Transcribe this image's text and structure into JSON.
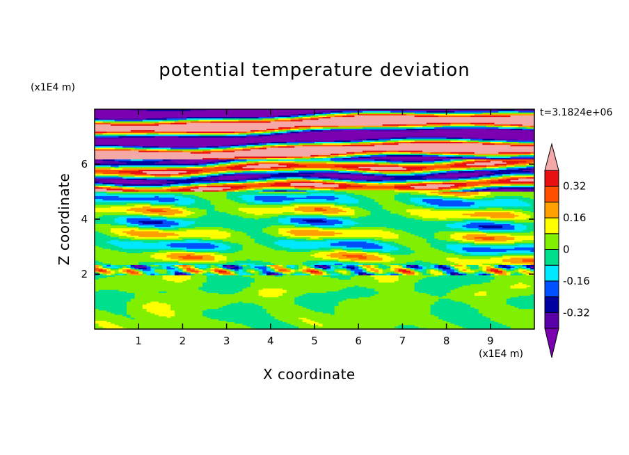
{
  "chart_data": {
    "type": "heatmap",
    "title": "potential temperature deviation",
    "xlabel": "X coordinate",
    "ylabel": "Z coordinate",
    "x_unit_label": "(x1E4 m)",
    "y_unit_label": "(x1E4 m)",
    "annotation": "t=3.1824e+06",
    "xlim": [
      0,
      10
    ],
    "ylim": [
      0,
      8
    ],
    "x_ticks": [
      1,
      2,
      3,
      4,
      5,
      6,
      7,
      8,
      9
    ],
    "y_ticks": [
      2,
      4,
      6
    ],
    "colorbar": {
      "levels": [
        -0.4,
        -0.32,
        -0.24,
        -0.16,
        -0.08,
        0,
        0.08,
        0.16,
        0.24,
        0.32,
        0.4
      ],
      "labels": [
        "0.32",
        "0.16",
        "0",
        "-0.16",
        "-0.32"
      ],
      "label_values": [
        0.32,
        0.16,
        0,
        -0.16,
        -0.32
      ],
      "colors": [
        "#7a00b0",
        "#5a00a8",
        "#0000a0",
        "#0050ff",
        "#00e8ff",
        "#00e08c",
        "#80f000",
        "#ffff00",
        "#ffa000",
        "#ff5000",
        "#e81010",
        "#f4a8a8"
      ]
    }
  }
}
